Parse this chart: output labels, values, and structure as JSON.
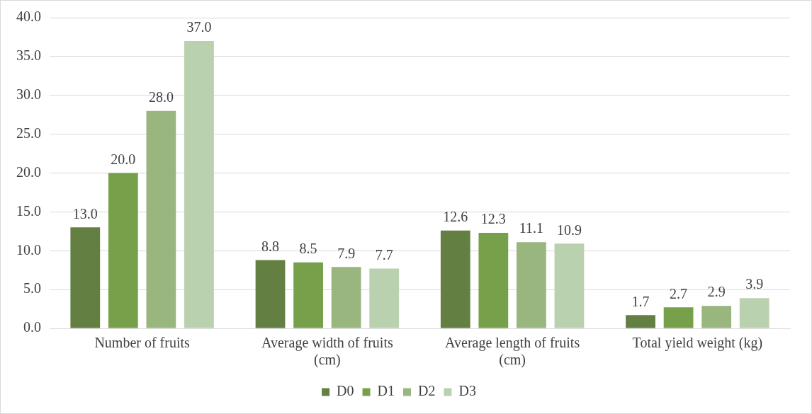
{
  "chart_data": {
    "type": "bar",
    "categories": [
      "Number of fruits",
      "Average width of fruits (cm)",
      "Average length of fruits (cm)",
      "Total yield weight (kg)"
    ],
    "series": [
      {
        "name": "D0",
        "color": "#637f42",
        "values": [
          13.0,
          8.8,
          12.6,
          1.7
        ],
        "value_labels": [
          "13.0",
          "8.8",
          "12.6",
          "1.7"
        ]
      },
      {
        "name": "D1",
        "color": "#77a04a",
        "values": [
          20.0,
          8.5,
          12.3,
          2.7
        ],
        "value_labels": [
          "20.0",
          "8.5",
          "12.3",
          "2.7"
        ]
      },
      {
        "name": "D2",
        "color": "#98b67d",
        "values": [
          28.0,
          7.9,
          11.1,
          2.9
        ],
        "value_labels": [
          "28.0",
          "7.9",
          "11.1",
          "2.9"
        ]
      },
      {
        "name": "D3",
        "color": "#bad1b0",
        "values": [
          37.0,
          7.7,
          10.9,
          3.9
        ],
        "value_labels": [
          "37.0",
          "7.7",
          "10.9",
          "3.9"
        ]
      }
    ],
    "ylim": [
      0,
      40
    ],
    "yticks": [
      {
        "value": 0,
        "label": "0.0"
      },
      {
        "value": 5,
        "label": "5.0"
      },
      {
        "value": 10,
        "label": "10.0"
      },
      {
        "value": 15,
        "label": "15.0"
      },
      {
        "value": 20,
        "label": "20.0"
      },
      {
        "value": 25,
        "label": "25.0"
      },
      {
        "value": 30,
        "label": "30.0"
      },
      {
        "value": 35,
        "label": "35.0"
      },
      {
        "value": 40,
        "label": "40.0"
      }
    ],
    "grid": "y",
    "legend": "bottom"
  }
}
